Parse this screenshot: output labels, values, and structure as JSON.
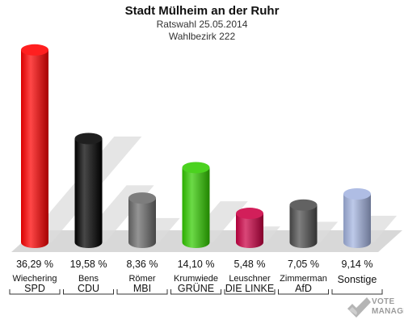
{
  "header": {
    "title": "Stadt Mülheim an der Ruhr",
    "subtitle": "Ratswahl 25.05.2014",
    "district": "Wahlbezirk 222"
  },
  "chart_data": {
    "type": "bar",
    "title": "Stadt Mülheim an der Ruhr",
    "subtitle": "Ratswahl 25.05.2014 · Wahlbezirk 222",
    "ylim": [
      0,
      37
    ],
    "grid": false,
    "legend": "none",
    "categories": [
      "SPD",
      "CDU",
      "MBI",
      "GRÜNE",
      "DIE LINKE",
      "AfD",
      "Sonstige"
    ],
    "candidates": [
      "Wiechering",
      "Bens",
      "Römer",
      "Krumwiede",
      "Leuschner",
      "Zimmerman",
      ""
    ],
    "value_labels": [
      "36,29 %",
      "19,58 %",
      "8,36 %",
      "14,10 %",
      "5,48 %",
      "7,05 %",
      "9,14 %"
    ],
    "values": [
      36.29,
      19.58,
      8.36,
      14.1,
      5.48,
      7.05,
      9.14
    ],
    "colors": [
      "#ff0000",
      "#000000",
      "#6b6b6b",
      "#33cc00",
      "#cc0044",
      "#4d4d4d",
      "#a4b4e0"
    ]
  },
  "watermark": {
    "line1": "VOTE",
    "line2": "MANAGER"
  }
}
